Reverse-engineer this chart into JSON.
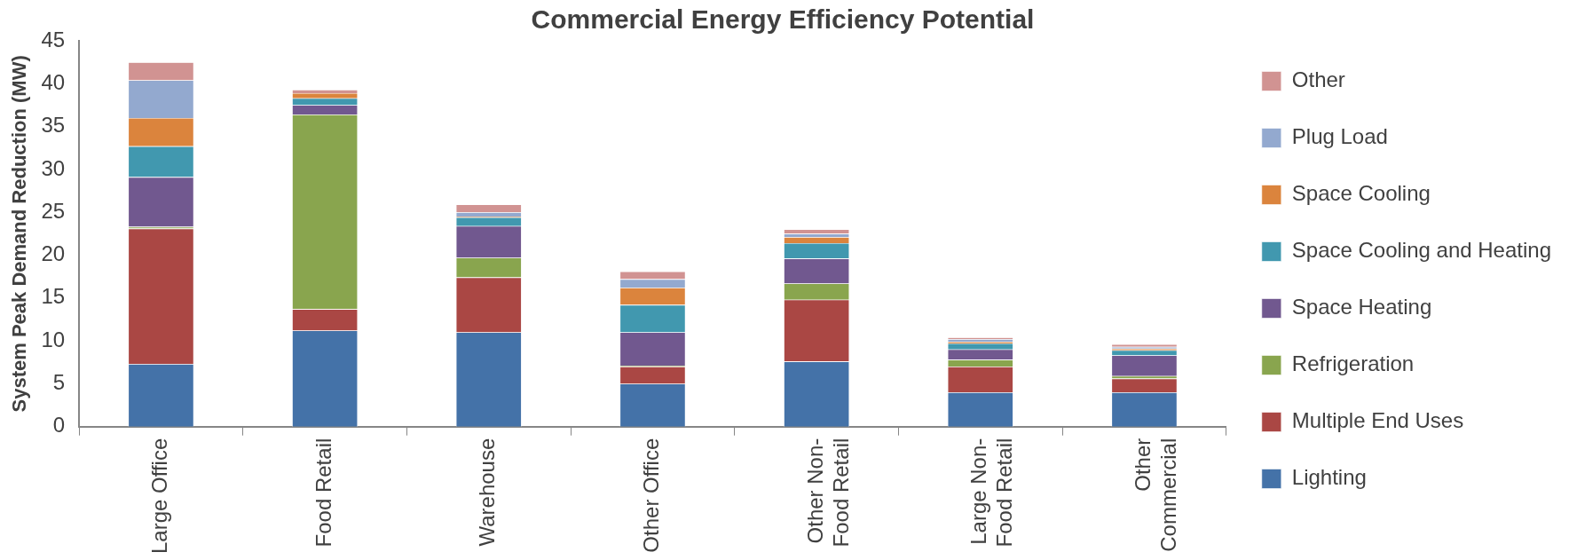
{
  "chart_data": {
    "type": "bar",
    "stacked": true,
    "title": "Commercial Energy Efficiency Potential",
    "ylabel": "System Peak Demand Reduction (MW)",
    "categories": [
      "Large Office",
      "Food Retail",
      "Warehouse",
      "Other Office",
      "Other Non-Food Retail",
      "Large Non-Food Retail",
      "Other Commercial"
    ],
    "ylim": [
      0,
      45
    ],
    "yticks": [
      0,
      5,
      10,
      15,
      20,
      25,
      30,
      35,
      40,
      45
    ],
    "grid": false,
    "legend": "right",
    "series": [
      {
        "name": "Lighting",
        "color": "#4472a8",
        "values": [
          7.3,
          11.2,
          11.0,
          5.0,
          7.6,
          4.0,
          4.0
        ]
      },
      {
        "name": "Multiple End Uses",
        "color": "#aa4744",
        "values": [
          15.8,
          2.5,
          6.4,
          2.0,
          7.2,
          3.0,
          1.6
        ]
      },
      {
        "name": "Refrigeration",
        "color": "#89a54e",
        "values": [
          0.2,
          22.7,
          2.3,
          0.1,
          1.9,
          0.8,
          0.3
        ]
      },
      {
        "name": "Space Heating",
        "color": "#71588f",
        "values": [
          5.8,
          1.1,
          3.7,
          3.9,
          2.9,
          1.2,
          2.4
        ]
      },
      {
        "name": "Space Cooling and Heating",
        "color": "#4198af",
        "values": [
          3.6,
          0.8,
          1.0,
          3.2,
          1.8,
          0.7,
          0.6
        ]
      },
      {
        "name": "Space Cooling",
        "color": "#db843d",
        "values": [
          3.3,
          0.6,
          0.1,
          2.0,
          0.7,
          0.2,
          0.2
        ]
      },
      {
        "name": "Plug Load",
        "color": "#93a9cf",
        "values": [
          4.4,
          null,
          0.5,
          1.0,
          0.4,
          0.3,
          0.2
        ]
      },
      {
        "name": "Other",
        "color": "#d19392",
        "values": [
          2.1,
          0.4,
          0.9,
          0.9,
          0.5,
          0.2,
          0.3
        ]
      }
    ]
  }
}
